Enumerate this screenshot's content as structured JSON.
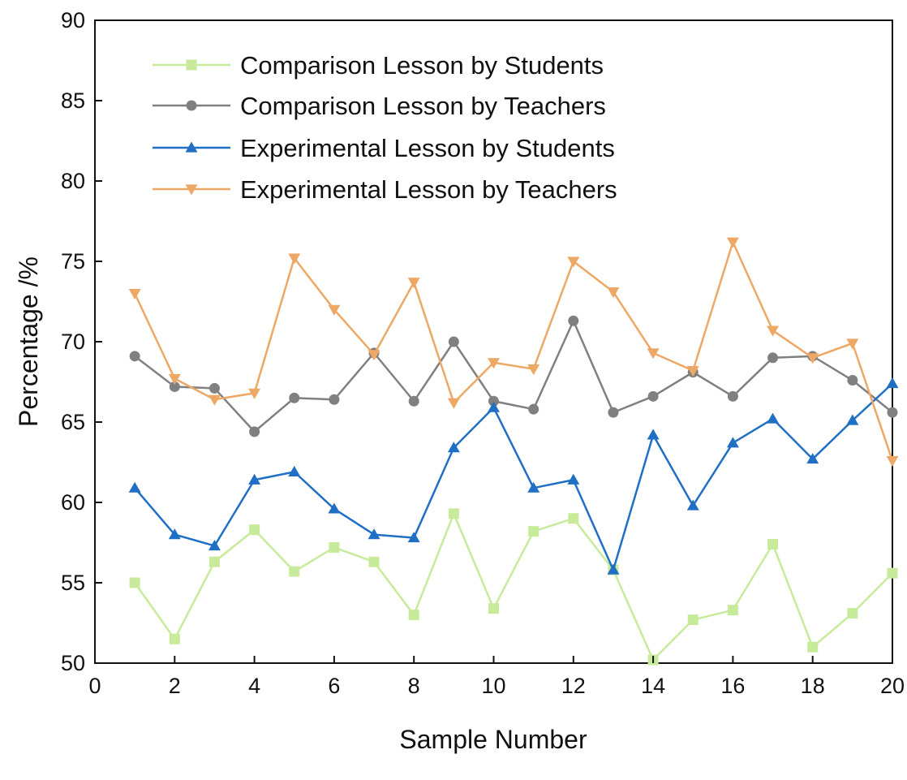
{
  "chart_data": {
    "type": "line",
    "title": "",
    "xlabel": "Sample Number",
    "ylabel": "Percentage /%",
    "xlim": [
      0,
      20
    ],
    "ylim": [
      50,
      90
    ],
    "xticks": [
      "0",
      "2",
      "4",
      "6",
      "8",
      "10",
      "12",
      "14",
      "16",
      "18",
      "20"
    ],
    "yticks": [
      "50",
      "55",
      "60",
      "65",
      "70",
      "75",
      "80",
      "85",
      "90"
    ],
    "grid": false,
    "legend_position": "top-left",
    "x": [
      1,
      2,
      3,
      4,
      5,
      6,
      7,
      8,
      9,
      10,
      11,
      12,
      13,
      14,
      15,
      16,
      17,
      18,
      19,
      20
    ],
    "series": [
      {
        "name": "Comparison Lesson by Students",
        "color": "#c8eb9b",
        "marker": "square",
        "values": [
          55.0,
          51.5,
          56.3,
          58.3,
          55.7,
          57.2,
          56.3,
          53.0,
          59.3,
          53.4,
          58.2,
          59.0,
          55.8,
          50.2,
          52.7,
          53.3,
          57.4,
          51.0,
          53.1,
          55.6
        ]
      },
      {
        "name": "Comparison Lesson by Teachers",
        "color": "#808080",
        "marker": "circle",
        "values": [
          69.1,
          67.2,
          67.1,
          64.4,
          66.5,
          66.4,
          69.3,
          66.3,
          70.0,
          66.3,
          65.8,
          71.3,
          65.6,
          66.6,
          68.1,
          66.6,
          69.0,
          69.1,
          67.6,
          65.6
        ]
      },
      {
        "name": "Experimental Lesson by Students",
        "color": "#1f6fc5",
        "marker": "triangle-up",
        "values": [
          60.9,
          58.0,
          57.3,
          61.4,
          61.9,
          59.6,
          58.0,
          57.8,
          63.4,
          65.9,
          60.9,
          61.4,
          55.8,
          64.2,
          59.8,
          63.7,
          65.2,
          62.7,
          65.1,
          67.4
        ]
      },
      {
        "name": "Experimental Lesson by Teachers",
        "color": "#eda866",
        "marker": "triangle-down",
        "values": [
          73.0,
          67.7,
          66.4,
          66.8,
          75.2,
          72.0,
          69.2,
          73.7,
          66.2,
          68.7,
          68.3,
          75.0,
          73.1,
          69.3,
          68.2,
          76.2,
          70.7,
          69.0,
          69.9,
          62.6
        ]
      }
    ]
  }
}
